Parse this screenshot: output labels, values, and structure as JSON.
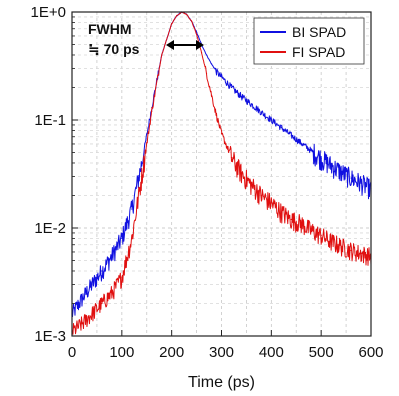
{
  "chart_data": {
    "type": "line",
    "xlabel": "Time (ps)",
    "ylabel": "",
    "xlim": [
      0,
      600
    ],
    "ylim": [
      0.001,
      1
    ],
    "yscale": "log",
    "x_ticks": [
      0,
      100,
      200,
      300,
      400,
      500,
      600
    ],
    "y_ticks": [
      1,
      0.1,
      0.01,
      0.001
    ],
    "y_tick_labels": [
      "1E+0",
      "1E-1",
      "1E-2",
      "1E-3"
    ],
    "grid": true,
    "legend_position": "top-right",
    "annotations": [
      {
        "text": "FWHM"
      },
      {
        "text": "≒ 70 ps"
      }
    ],
    "series": [
      {
        "name": "BI SPAD",
        "color": "#1010e0",
        "x": [
          0,
          20,
          40,
          60,
          80,
          100,
          120,
          140,
          160,
          180,
          200,
          210,
          220,
          230,
          240,
          250,
          260,
          270,
          280,
          290,
          300,
          320,
          340,
          360,
          380,
          400,
          420,
          440,
          460,
          480,
          500,
          520,
          540,
          560,
          580,
          600
        ],
        "y": [
          0.0016,
          0.0022,
          0.003,
          0.004,
          0.0055,
          0.008,
          0.015,
          0.04,
          0.13,
          0.4,
          0.78,
          0.92,
          1.0,
          0.95,
          0.82,
          0.65,
          0.5,
          0.4,
          0.33,
          0.28,
          0.25,
          0.2,
          0.165,
          0.14,
          0.118,
          0.1,
          0.085,
          0.072,
          0.061,
          0.052,
          0.044,
          0.038,
          0.033,
          0.029,
          0.026,
          0.023
        ]
      },
      {
        "name": "FI SPAD",
        "color": "#e01010",
        "x": [
          0,
          20,
          40,
          60,
          80,
          100,
          120,
          140,
          160,
          180,
          200,
          210,
          220,
          230,
          240,
          250,
          260,
          270,
          280,
          290,
          300,
          320,
          340,
          360,
          380,
          400,
          420,
          440,
          460,
          480,
          500,
          520,
          540,
          560,
          580,
          600
        ],
        "y": [
          0.0011,
          0.0013,
          0.0016,
          0.002,
          0.0025,
          0.0035,
          0.008,
          0.03,
          0.12,
          0.4,
          0.78,
          0.92,
          1.0,
          0.95,
          0.82,
          0.62,
          0.42,
          0.27,
          0.17,
          0.11,
          0.075,
          0.045,
          0.032,
          0.025,
          0.02,
          0.017,
          0.014,
          0.012,
          0.011,
          0.0095,
          0.0085,
          0.0075,
          0.0068,
          0.0062,
          0.0058,
          0.0055
        ]
      }
    ]
  }
}
